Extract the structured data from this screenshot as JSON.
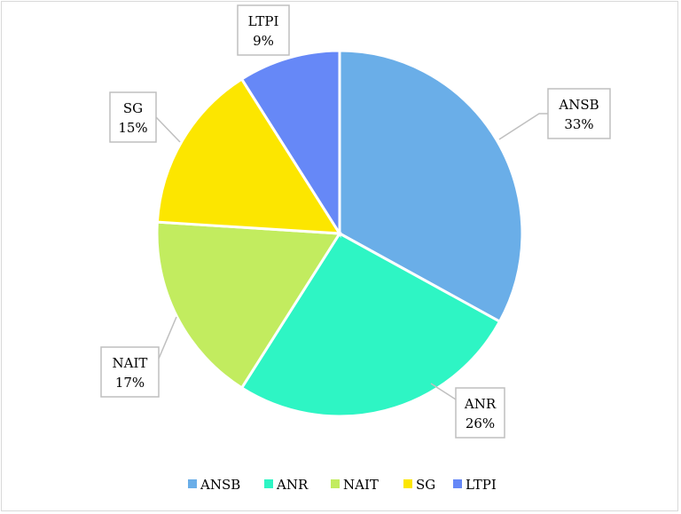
{
  "chart_data": {
    "type": "pie",
    "title": "",
    "categories": [
      "ANSB",
      "ANR",
      "NAIT",
      "SG",
      "LTPI"
    ],
    "values": [
      33,
      26,
      17,
      15,
      9
    ],
    "value_labels": [
      "33%",
      "26%",
      "17%",
      "15%",
      "9%"
    ],
    "colors": [
      "#6aaee8",
      "#2ef5c4",
      "#c2ec5f",
      "#fce600",
      "#6688f7"
    ],
    "legend": {
      "position": "bottom",
      "entries": [
        "ANSB",
        "ANR",
        "NAIT",
        "SG",
        "LTPI"
      ]
    },
    "start_angle": "12 o'clock",
    "direction": "clockwise"
  }
}
